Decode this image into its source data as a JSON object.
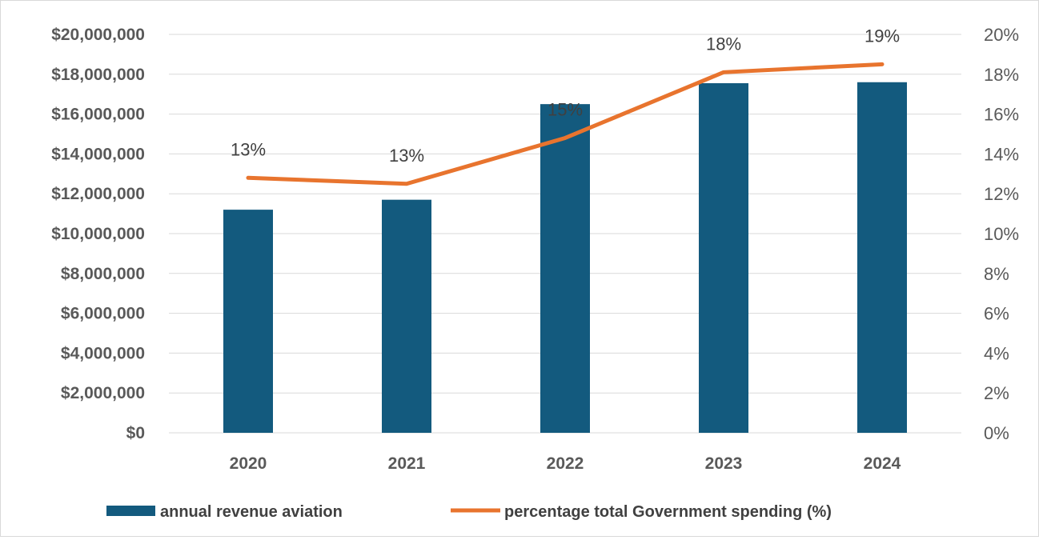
{
  "chart_data": {
    "type": "bar",
    "title": "",
    "categories": [
      "2020",
      "2021",
      "2022",
      "2023",
      "2024"
    ],
    "series": [
      {
        "name": "annual revenue aviation",
        "type": "bar",
        "axis": "left",
        "color": "#135a7e",
        "values": [
          11200000,
          11700000,
          16500000,
          17550000,
          17600000
        ]
      },
      {
        "name": "percentage total Government spending (%)",
        "type": "line",
        "axis": "right",
        "color": "#e8742e",
        "values": [
          12.8,
          12.5,
          14.8,
          18.1,
          18.5
        ],
        "data_labels": [
          "13%",
          "13%",
          "15%",
          "18%",
          "19%"
        ]
      }
    ],
    "y_left": {
      "ylim": [
        0,
        20000000
      ],
      "ticks": [
        "$0",
        "$2,000,000",
        "$4,000,000",
        "$6,000,000",
        "$8,000,000",
        "$10,000,000",
        "$12,000,000",
        "$14,000,000",
        "$16,000,000",
        "$18,000,000",
        "$20,000,000"
      ]
    },
    "y_right": {
      "ylim": [
        0,
        20
      ],
      "ticks": [
        "0%",
        "2%",
        "4%",
        "6%",
        "8%",
        "10%",
        "12%",
        "14%",
        "16%",
        "18%",
        "20%"
      ]
    },
    "grid": true,
    "legend": "bottom"
  }
}
